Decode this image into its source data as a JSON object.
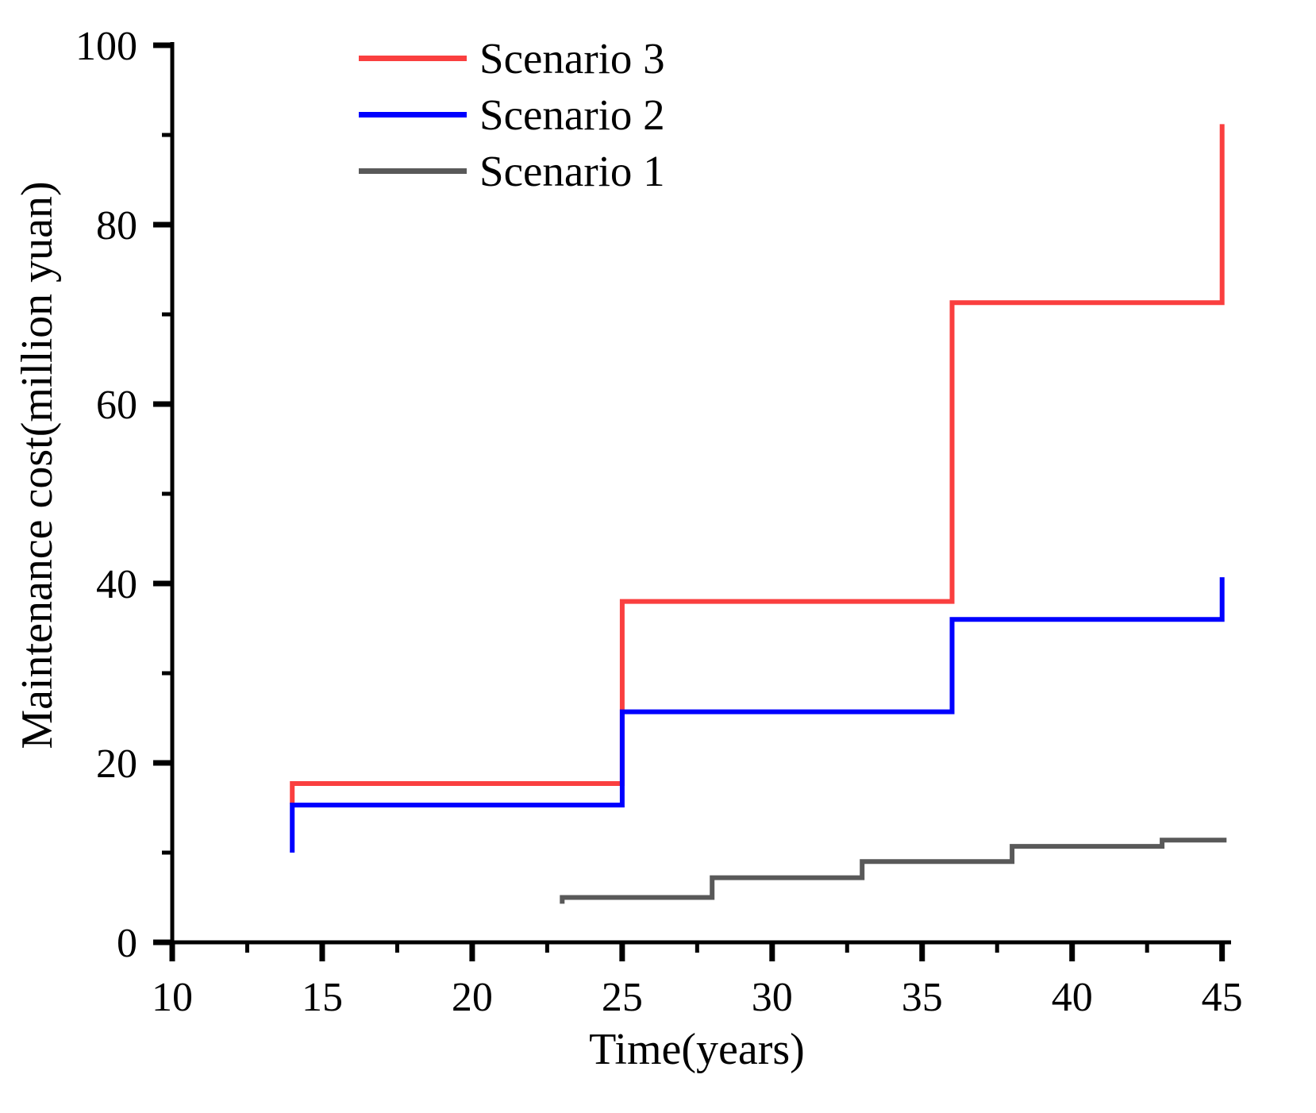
{
  "figure": {
    "background": "#ffffff",
    "text_color": "#000000"
  },
  "chart_data": {
    "type": "line",
    "subtype": "step",
    "title": "",
    "xlabel": "Time(years)",
    "ylabel": "Maintenance cost(million yuan)",
    "xlim": [
      10,
      45.3
    ],
    "ylim": [
      0,
      100
    ],
    "x_ticks_major": [
      10,
      15,
      20,
      25,
      30,
      35,
      40,
      45
    ],
    "x_ticks_minor": [
      12.5,
      17.5,
      22.5,
      27.5,
      32.5,
      37.5,
      42.5
    ],
    "y_ticks_major": [
      0,
      20,
      40,
      60,
      80,
      100
    ],
    "y_ticks_minor": [
      10,
      30,
      50,
      70,
      90
    ],
    "grid": false,
    "legend_position": "upper-left-inside",
    "series": [
      {
        "name": "Scenario 3",
        "color": "#fa3f3f",
        "points": [
          [
            14,
            15.4
          ],
          [
            14,
            17.7
          ],
          [
            25,
            17.7
          ],
          [
            25,
            38
          ],
          [
            36,
            38
          ],
          [
            36,
            71.3
          ],
          [
            45,
            71.3
          ],
          [
            45,
            91.2
          ]
        ]
      },
      {
        "name": "Scenario 2",
        "color": "#0000ff",
        "points": [
          [
            14,
            10
          ],
          [
            14,
            15.3
          ],
          [
            25,
            15.3
          ],
          [
            25,
            25.7
          ],
          [
            36,
            25.7
          ],
          [
            36,
            36
          ],
          [
            45,
            36
          ],
          [
            45,
            40.7
          ]
        ]
      },
      {
        "name": "Scenario 1",
        "color": "#595959",
        "points": [
          [
            23,
            4.3
          ],
          [
            23,
            5
          ],
          [
            28,
            5
          ],
          [
            28,
            7.2
          ],
          [
            33,
            7.2
          ],
          [
            33,
            9
          ],
          [
            38,
            9
          ],
          [
            38,
            10.7
          ],
          [
            43,
            10.7
          ],
          [
            43,
            11.4
          ],
          [
            45.15,
            11.4
          ]
        ]
      }
    ]
  }
}
